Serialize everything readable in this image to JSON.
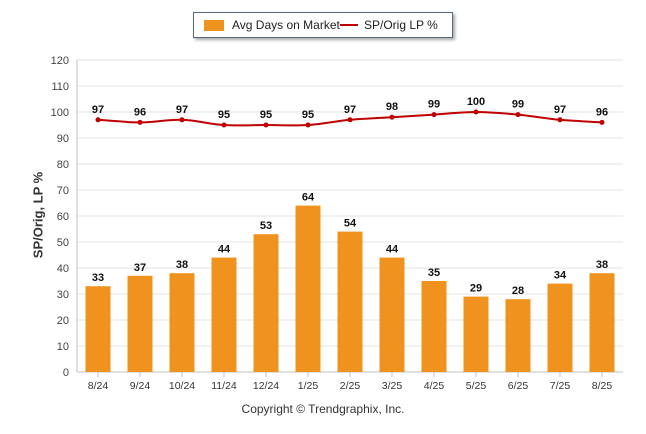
{
  "chart_data": {
    "type": "bar",
    "categories": [
      "8/24",
      "9/24",
      "10/24",
      "11/24",
      "12/24",
      "1/25",
      "2/25",
      "3/25",
      "4/25",
      "5/25",
      "6/25",
      "7/25",
      "8/25"
    ],
    "series": [
      {
        "name": "Avg Days on Market",
        "type": "bar",
        "color": "#f0921e",
        "values": [
          33,
          37,
          38,
          44,
          53,
          64,
          54,
          44,
          35,
          29,
          28,
          34,
          38
        ]
      },
      {
        "name": "SP/Orig LP %",
        "type": "line",
        "color": "#c00000",
        "values": [
          97,
          96,
          97,
          95,
          95,
          95,
          97,
          98,
          99,
          100,
          99,
          97,
          96
        ]
      }
    ],
    "ylabel": "SP/Orig, LP %",
    "ylim": [
      0,
      120
    ],
    "yticks": [
      0,
      10,
      20,
      30,
      40,
      50,
      60,
      70,
      80,
      90,
      100,
      110,
      120
    ],
    "grid": true,
    "legend_position": "top"
  },
  "legend": {
    "bar_label": "Avg Days on Market",
    "line_label": "SP/Orig LP %"
  },
  "footer": {
    "copyright": "Copyright © Trendgraphix, Inc."
  }
}
